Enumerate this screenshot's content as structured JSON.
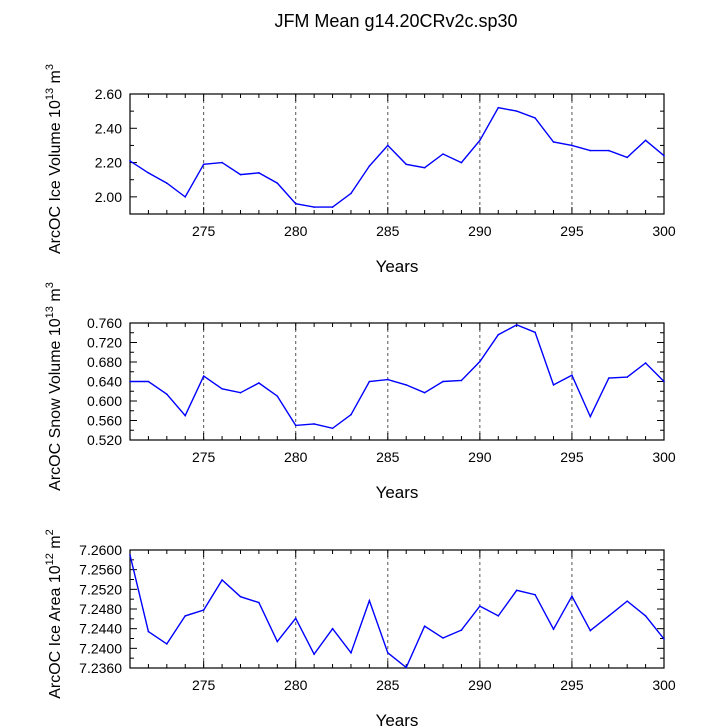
{
  "title": "JFM Mean g14.20CRv2c.sp30",
  "colors": {
    "series": "#0000ff",
    "axes": "#000000",
    "grid": "#555555"
  },
  "chart_data": [
    {
      "type": "line",
      "xlabel": "Years",
      "ylabel": {
        "prefix": "ArcOC Ice Volume 10",
        "exp": "13",
        "unit": " m",
        "unit_exp": "3"
      },
      "xlim": [
        271,
        300
      ],
      "ylim": [
        1.9,
        2.6
      ],
      "x_ticks": [
        "275",
        "280",
        "285",
        "290",
        "295",
        "300"
      ],
      "y_ticks": [
        "2.00",
        "2.20",
        "2.40",
        "2.60"
      ],
      "grid": "vertical dashed at x-ticks",
      "x": [
        271,
        272,
        273,
        274,
        275,
        276,
        277,
        278,
        279,
        280,
        281,
        282,
        283,
        284,
        285,
        286,
        287,
        288,
        289,
        290,
        291,
        292,
        293,
        294,
        295,
        296,
        297,
        298,
        299,
        300
      ],
      "values": [
        2.21,
        2.14,
        2.08,
        2.0,
        2.19,
        2.2,
        2.13,
        2.14,
        2.08,
        1.96,
        1.94,
        1.94,
        2.02,
        2.18,
        2.3,
        2.19,
        2.17,
        2.25,
        2.2,
        2.33,
        2.52,
        2.5,
        2.46,
        2.32,
        2.3,
        2.27,
        2.27,
        2.23,
        2.33,
        2.24
      ]
    },
    {
      "type": "line",
      "xlabel": "Years",
      "ylabel": {
        "prefix": "ArcOC Snow Volume 10",
        "exp": "13",
        "unit": " m",
        "unit_exp": "3"
      },
      "xlim": [
        271,
        300
      ],
      "ylim": [
        0.52,
        0.76
      ],
      "x_ticks": [
        "275",
        "280",
        "285",
        "290",
        "295",
        "300"
      ],
      "y_ticks": [
        "0.520",
        "0.560",
        "0.600",
        "0.640",
        "0.680",
        "0.720",
        "0.760"
      ],
      "grid": "vertical dashed at x-ticks",
      "x": [
        271,
        272,
        273,
        274,
        275,
        276,
        277,
        278,
        279,
        280,
        281,
        282,
        283,
        284,
        285,
        286,
        287,
        288,
        289,
        290,
        291,
        292,
        293,
        294,
        295,
        296,
        297,
        298,
        299,
        300
      ],
      "values": [
        0.64,
        0.64,
        0.614,
        0.57,
        0.651,
        0.625,
        0.617,
        0.637,
        0.61,
        0.55,
        0.553,
        0.544,
        0.572,
        0.64,
        0.644,
        0.633,
        0.617,
        0.64,
        0.642,
        0.681,
        0.736,
        0.756,
        0.741,
        0.633,
        0.653,
        0.568,
        0.647,
        0.649,
        0.678,
        0.64
      ]
    },
    {
      "type": "line",
      "xlabel": "Years",
      "ylabel": {
        "prefix": "ArcOC Ice Area 10",
        "exp": "12",
        "unit": " m",
        "unit_exp": "2"
      },
      "xlim": [
        271,
        300
      ],
      "ylim": [
        7.236,
        7.26
      ],
      "x_ticks": [
        "275",
        "280",
        "285",
        "290",
        "295",
        "300"
      ],
      "y_ticks": [
        "7.2360",
        "7.2400",
        "7.2440",
        "7.2480",
        "7.2520",
        "7.2560",
        "7.2600"
      ],
      "grid": "vertical dashed at x-ticks",
      "x": [
        271,
        272,
        273,
        274,
        275,
        276,
        277,
        278,
        279,
        280,
        281,
        282,
        283,
        284,
        285,
        286,
        287,
        288,
        289,
        290,
        291,
        292,
        293,
        294,
        295,
        296,
        297,
        298,
        299,
        300
      ],
      "values": [
        7.259,
        7.2434,
        7.2409,
        7.2466,
        7.2478,
        7.2539,
        7.2505,
        7.2493,
        7.2414,
        7.2461,
        7.2388,
        7.244,
        7.2391,
        7.2497,
        7.2391,
        7.2361,
        7.2445,
        7.2421,
        7.2437,
        7.2486,
        7.2466,
        7.2518,
        7.2509,
        7.2439,
        7.2506,
        7.2436,
        7.2466,
        7.2496,
        7.2466,
        7.2419
      ]
    }
  ]
}
